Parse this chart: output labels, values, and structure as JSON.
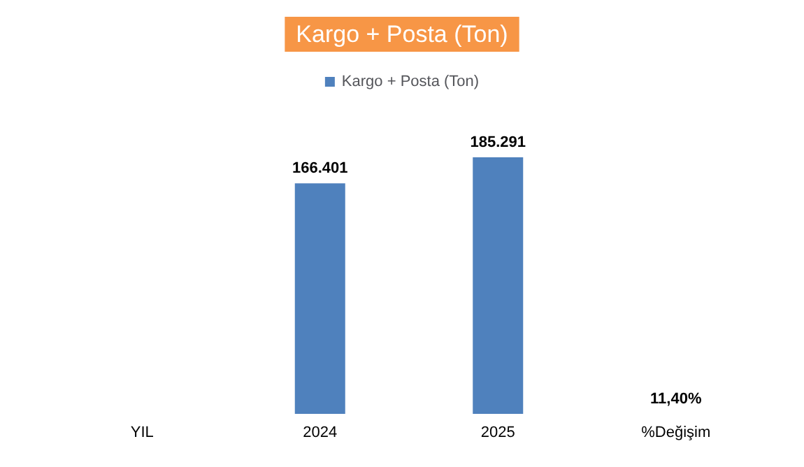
{
  "chart_data": {
    "type": "bar",
    "title": "Kargo + Posta (Ton)",
    "categories": [
      "YIL",
      "2024",
      "2025",
      "%Değişim"
    ],
    "series": [
      {
        "name": "Kargo + Posta (Ton)",
        "color": "#4f81bd",
        "values": [
          null,
          166401,
          185291,
          11.4
        ],
        "value_labels": [
          null,
          "166.401",
          "185.291",
          "11,40%"
        ]
      }
    ],
    "legend": "top",
    "grid": false,
    "tick_labels": "x"
  }
}
